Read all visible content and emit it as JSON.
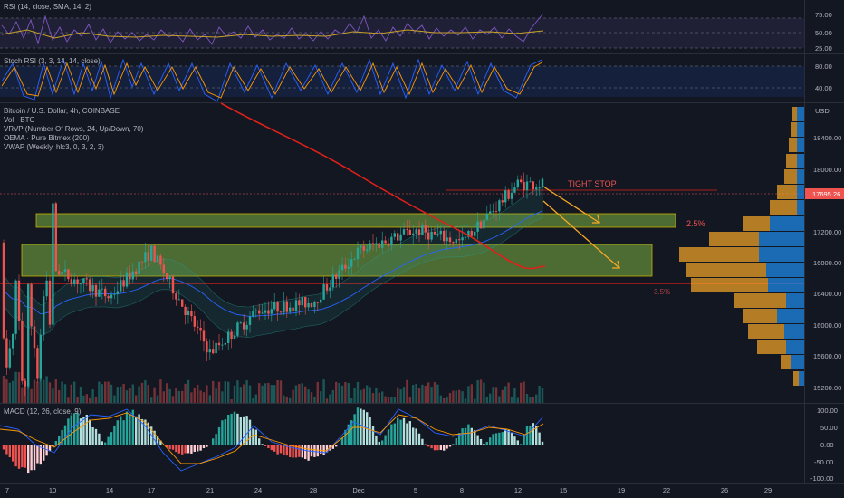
{
  "panes": {
    "rsi": {
      "label": "RSI (14, close, SMA, 14, 2)",
      "ticks": [
        "75.00",
        "50.00",
        "25.00"
      ]
    },
    "stoch": {
      "label": "Stoch RSI (3, 3, 14, 14, close)",
      "ticks": [
        "80.00",
        "40.00"
      ]
    },
    "price": {
      "legend": [
        "Bitcoin / U.S. Dollar, 4h, COINBASE",
        "Vol · BTC",
        "VRVP (Number Of Rows, 24, Up/Down, 70)",
        "OEMA · Pure Bitmex (200)",
        "VWAP (Weekly, hlc3, 0, 3, 2, 3)"
      ],
      "currency": "USD",
      "ticks": [
        "18400.00",
        "18000.00",
        "17200.00",
        "16800.00",
        "16400.00",
        "16000.00",
        "15600.00",
        "15200.00"
      ],
      "last_price": "17695.26",
      "annotations": {
        "tight_stop": "TIGHT STOP",
        "pct": "2.5%",
        "lower_pct": "3.5%"
      }
    },
    "macd": {
      "label": "MACD (12, 26, close, 9)",
      "ticks": [
        "100.00",
        "50.00",
        "0.00",
        "-50.00",
        "-100.00"
      ]
    }
  },
  "time_axis": [
    "7",
    "10",
    "14",
    "17",
    "21",
    "24",
    "28",
    "Dec",
    "5",
    "8",
    "12",
    "15",
    "19",
    "22",
    "26",
    "29"
  ],
  "colors": {
    "background": "#131722",
    "up": "#26a69a",
    "down": "#ef5350",
    "ema": "#e0201a",
    "vwap": "#2962ff",
    "zone": "#7cb342",
    "zone_border": "#c9b200",
    "rsi_line": "#7e57c2",
    "signal": "#ff9800"
  },
  "chart_data": [
    {
      "type": "line",
      "title": "RSI (14, close, SMA, 14, 2)",
      "ylim": [
        0,
        100
      ],
      "series": [],
      "levels": [
        75,
        50,
        25
      ]
    },
    {
      "type": "line",
      "title": "Stoch RSI (3, 3, 14, 14, close)",
      "ylim": [
        0,
        100
      ],
      "series": [],
      "levels": [
        80,
        40
      ]
    },
    {
      "type": "line",
      "title": "Bitcoin / U.S. Dollar, 4h, COINBASE",
      "ylim": [
        15100,
        18650
      ],
      "x": [
        "7",
        "10",
        "14",
        "17",
        "21",
        "24",
        "28",
        "Dec",
        "5",
        "8",
        "12"
      ],
      "series": [
        {
          "name": "Bitcoin / U.S. Dollar, 4h, COINBASE",
          "values": [
            15200,
            16700,
            16350,
            16900,
            15700,
            16200,
            16300,
            16900,
            17150,
            17000,
            17695
          ]
        }
      ],
      "last": 17695.26,
      "zones": [
        {
          "from": 17250,
          "to": 17400
        },
        {
          "from": 16600,
          "to": 17050
        }
      ],
      "lines": [
        16540,
        17560
      ]
    },
    {
      "type": "bar",
      "title": "MACD (12, 26, close, 9)",
      "ylim": [
        -120,
        120
      ],
      "series": [],
      "levels": [
        100,
        50,
        0,
        -50,
        -100
      ]
    }
  ]
}
